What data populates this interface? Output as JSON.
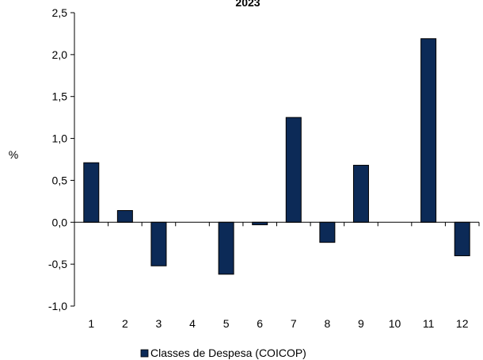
{
  "chart_data": {
    "type": "bar",
    "title": "2023",
    "xlabel": "",
    "ylabel": "%",
    "categories": [
      "1",
      "2",
      "3",
      "4",
      "5",
      "6",
      "7",
      "8",
      "9",
      "10",
      "11",
      "12"
    ],
    "series": [
      {
        "name": "Classes de Despesa (COICOP)",
        "values": [
          0.71,
          0.14,
          -0.52,
          0,
          -0.62,
          -0.03,
          1.25,
          -0.24,
          0.68,
          0,
          2.19,
          -0.4
        ],
        "color": "#0c2a57"
      }
    ],
    "ylim": [
      -1.0,
      2.5
    ],
    "yticks": [
      "-1,0",
      "-0,5",
      "0,0",
      "0,5",
      "1,0",
      "1,5",
      "2,0",
      "2,5"
    ],
    "yticks_values": [
      -1.0,
      -0.5,
      0,
      0.5,
      1.0,
      1.5,
      2.0,
      2.5
    ],
    "grid": false,
    "legend_position": "bottom-center"
  }
}
